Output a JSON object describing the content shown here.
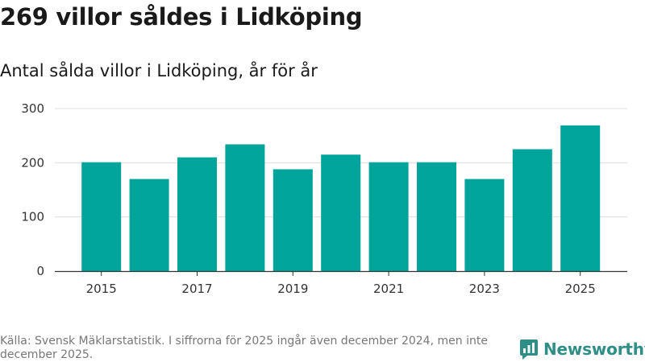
{
  "title": "269 villor såldes i Lidköping",
  "subtitle": "Antal sålda villor i Lidköping, år för år",
  "source": "Källa: Svensk Mäklarstatistik. I siffrorna för 2025 ingår även december 2024, men inte december 2025.",
  "brand": {
    "name": "Newsworthy",
    "color": "#2f8f86"
  },
  "colors": {
    "bar": "#00a49a",
    "grid": "#dddddd",
    "axis": "#333333"
  },
  "chart_data": {
    "type": "bar",
    "title": "Antal sålda villor i Lidköping, år för år",
    "xlabel": "",
    "ylabel": "",
    "categories": [
      "2015",
      "2016",
      "2017",
      "2018",
      "2019",
      "2020",
      "2021",
      "2022",
      "2023",
      "2024",
      "2025"
    ],
    "values": [
      201,
      170,
      210,
      234,
      188,
      215,
      201,
      201,
      170,
      225,
      269
    ],
    "x_tick_labels": [
      "2015",
      "2017",
      "2019",
      "2021",
      "2023",
      "2025"
    ],
    "y_ticks": [
      0,
      100,
      200,
      300
    ],
    "ylim": [
      0,
      300
    ],
    "grid": true
  }
}
